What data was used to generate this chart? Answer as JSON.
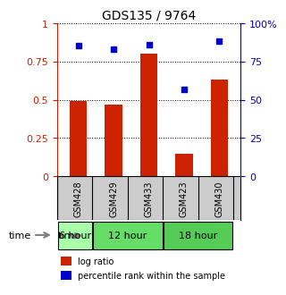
{
  "title": "GDS135 / 9764",
  "samples": [
    "GSM428",
    "GSM429",
    "GSM433",
    "GSM423",
    "GSM430"
  ],
  "log_ratio": [
    0.49,
    0.47,
    0.8,
    0.15,
    0.63
  ],
  "percentile_rank": [
    0.85,
    0.83,
    0.86,
    0.57,
    0.88
  ],
  "bar_color": "#cc2200",
  "dot_color": "#0000cc",
  "left_yticks": [
    0,
    0.25,
    0.5,
    0.75,
    1.0
  ],
  "right_yticks": [
    0,
    25,
    50,
    75,
    100
  ],
  "right_ytick_labels": [
    "0",
    "25",
    "50",
    "75",
    "100%"
  ],
  "time_groups": [
    {
      "label": "6 hour",
      "columns": [
        0
      ],
      "color": "#aaffaa"
    },
    {
      "label": "12 hour",
      "columns": [
        1,
        2
      ],
      "color": "#66dd66"
    },
    {
      "label": "18 hour",
      "columns": [
        3,
        4
      ],
      "color": "#55cc55"
    }
  ],
  "time_label": "time",
  "legend_bar_label": "log ratio",
  "legend_dot_label": "percentile rank within the sample",
  "background_color": "#ffffff",
  "sample_row_color": "#cccccc",
  "grid_color": "#000000",
  "left_axis_color": "#cc2200",
  "right_axis_color": "#0000cc"
}
